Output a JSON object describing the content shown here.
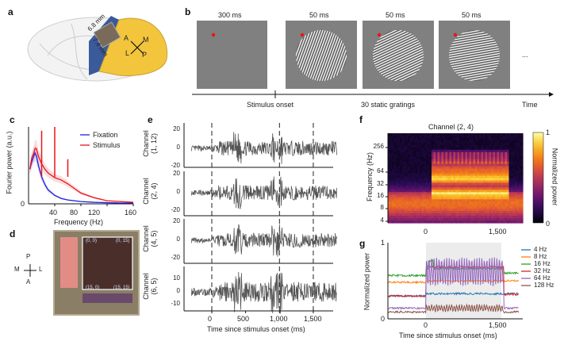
{
  "panels": {
    "a": {
      "label": "a",
      "dim1": "6.8 mm",
      "dim2": "7.4 mm",
      "compass": [
        "A",
        "M",
        "L",
        "P"
      ]
    },
    "b": {
      "label": "b",
      "durations": [
        "300 ms",
        "50 ms",
        "50 ms",
        "50 ms"
      ],
      "ellipsis": "...",
      "onset": "Stimulus onset",
      "gratings": "30 static gratings",
      "time": "Time"
    },
    "c": {
      "label": "c"
    },
    "d": {
      "label": "d",
      "compass": [
        "P",
        "M",
        "L",
        "A"
      ],
      "corners": [
        "(0, 0)",
        "(0, 15)",
        "(15, 0)",
        "(15, 15)"
      ]
    },
    "e": {
      "label": "e",
      "channels": [
        "Channel\n(1, 12)",
        "Channel\n(2, 4)",
        "Channel\n(4, 5)",
        "Channel\n(6, 5)"
      ]
    },
    "f": {
      "label": "f"
    },
    "g": {
      "label": "g"
    }
  },
  "colors": {
    "fixation": "#1f1fe0",
    "stimulus": "#e8141c",
    "trace": "#555555",
    "g_4": "#1f77b4",
    "g_8": "#ff7f0e",
    "g_16": "#2ca02c",
    "g_32": "#d62728",
    "g_64": "#9467bd",
    "g_128": "#8c564b"
  },
  "chart_data": [
    {
      "panel": "c",
      "type": "line",
      "xlabel": "Frequency (Hz)",
      "ylabel": "Fourier power (a.u.)",
      "xlim": [
        0,
        160
      ],
      "xticks": [
        "40",
        "80",
        "120",
        "160"
      ],
      "yticks": [
        "0"
      ],
      "legend_position": "top-right",
      "x": [
        2,
        5,
        8,
        10,
        12,
        15,
        20,
        25,
        30,
        40,
        50,
        60,
        70,
        80,
        100,
        120,
        140,
        160
      ],
      "series": [
        {
          "name": "Fixation",
          "values": [
            0.45,
            0.55,
            0.62,
            0.66,
            0.62,
            0.5,
            0.35,
            0.25,
            0.18,
            0.11,
            0.07,
            0.05,
            0.04,
            0.03,
            0.02,
            0.015,
            0.01,
            0.01
          ]
        },
        {
          "name": "Stimulus",
          "values": [
            0.45,
            0.6,
            0.66,
            0.72,
            0.72,
            0.62,
            0.52,
            0.45,
            0.4,
            0.34,
            0.31,
            0.26,
            0.2,
            0.14,
            0.08,
            0.04,
            0.03,
            0.02
          ]
        }
      ],
      "peaks_stimulus": [
        {
          "x": 20,
          "y": 0.95
        },
        {
          "x": 40,
          "y": 1.0
        },
        {
          "x": 60,
          "y": 0.58
        }
      ]
    },
    {
      "panel": "e",
      "type": "line",
      "xlabel": "Time since stimulus onset (ms)",
      "xlim": [
        -300,
        1850
      ],
      "xticks": [
        "0",
        "500",
        "1,000",
        "1,500"
      ],
      "markers_ms": [
        0,
        1000,
        1500
      ],
      "axes": [
        {
          "yticks": [
            "20",
            "0",
            "-20"
          ],
          "ylim": [
            -22,
            25
          ]
        },
        {
          "yticks": [
            "20",
            "0",
            "-20"
          ],
          "ylim": [
            -25,
            25
          ]
        },
        {
          "yticks": [
            "20",
            "0",
            "-20"
          ],
          "ylim": [
            -22,
            25
          ]
        },
        {
          "yticks": [
            "10",
            "0",
            "-10"
          ],
          "ylim": [
            -14,
            18
          ]
        }
      ]
    },
    {
      "panel": "f",
      "type": "heatmap",
      "title": "Channel (2, 4)",
      "ylabel": "Frequency (Hz)",
      "yticks": [
        "256",
        "64",
        "32",
        "16",
        "8",
        "4"
      ],
      "xticks": [
        "0",
        "1,500"
      ],
      "xlim": [
        -750,
        1850
      ],
      "colorbar_label": "Normalized power",
      "colorbar_ticks": [
        "1",
        "0"
      ],
      "colormap": "inferno"
    },
    {
      "panel": "g",
      "type": "line",
      "xlabel": "Time since stimulus onset (ms)",
      "ylabel": "Normalized power",
      "ylim": [
        0,
        1
      ],
      "yticks": [
        "1",
        "0"
      ],
      "xticks": [
        "0",
        "1,500"
      ],
      "xlim": [
        -750,
        1850
      ],
      "shaded_interval_ms": [
        0,
        1500
      ],
      "legend_position": "right",
      "series": [
        {
          "name": "4 Hz",
          "pre": 0.3,
          "during": 0.33,
          "post": 0.33
        },
        {
          "name": "8 Hz",
          "pre": 0.48,
          "during": 0.5,
          "post": 0.5
        },
        {
          "name": "16 Hz",
          "pre": 0.57,
          "during": 0.66,
          "post": 0.6
        },
        {
          "name": "32 Hz",
          "pre": 0.3,
          "during": 0.68,
          "post": 0.32
        },
        {
          "name": "64 Hz",
          "pre": 0.14,
          "during": 0.62,
          "post": 0.14
        },
        {
          "name": "128 Hz",
          "pre": 0.09,
          "during": 0.14,
          "post": 0.09
        }
      ]
    }
  ]
}
